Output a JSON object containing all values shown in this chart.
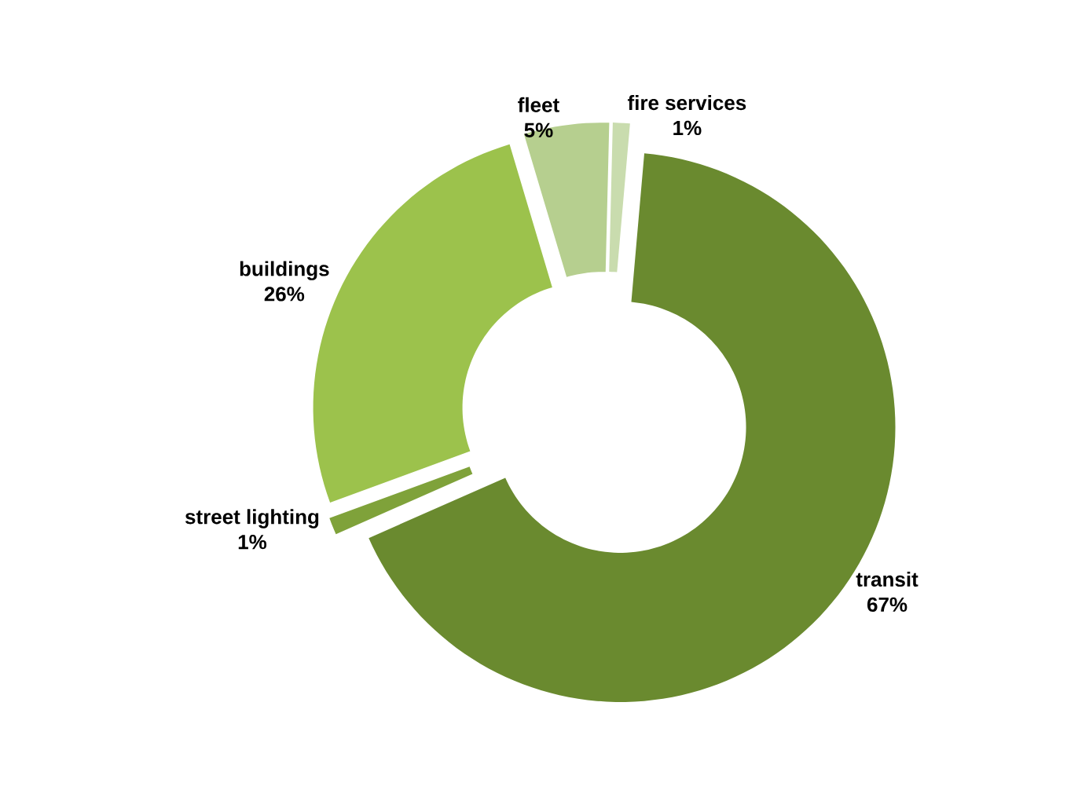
{
  "chart_data": {
    "type": "donut",
    "categories": [
      "transit",
      "street lighting",
      "buildings",
      "fleet",
      "fire services"
    ],
    "values": [
      67,
      1,
      26,
      5,
      1
    ],
    "colors": [
      "#6a8a2f",
      "#7fa23a",
      "#9cc24c",
      "#b6cf8f",
      "#c9dcae"
    ],
    "value_labels": [
      "67%",
      "1%",
      "26%",
      "5%",
      "1%"
    ]
  }
}
